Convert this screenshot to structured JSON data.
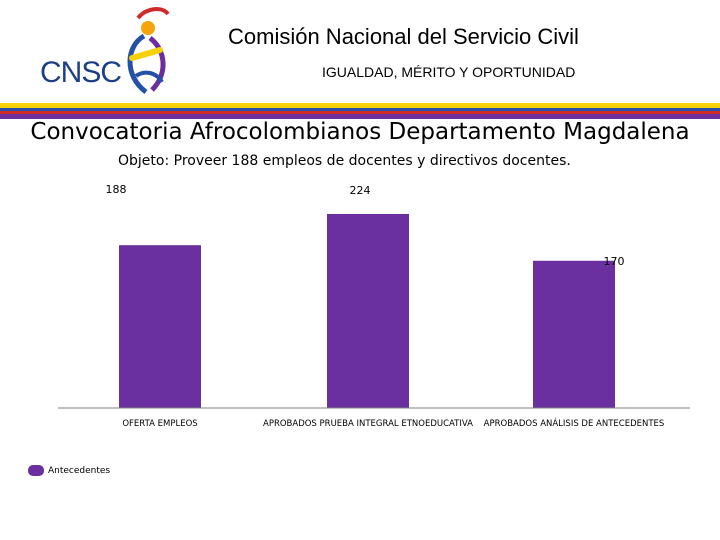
{
  "header": {
    "logo_text": "CNSC",
    "org_name": "Comisión Nacional del Servicio Civil",
    "motto": "IGUALDAD, MÉRITO Y OPORTUNIDAD"
  },
  "slide": {
    "title": "Convocatoria Afrocolombianos Departamento Magdalena",
    "subtitle": "Objeto: Proveer 188 empleos de docentes y directivos docentes."
  },
  "colors": {
    "bar": "#6b30a0",
    "axis": "#808080"
  },
  "chart_data": {
    "type": "bar",
    "categories": [
      "OFERTA EMPLEOS",
      "APROBADOS PRUEBA INTEGRAL ETNOEDUCATIVA",
      "APROBADOS ANÁLISIS DE ANTECEDENTES"
    ],
    "series": [
      {
        "name": "Antecedentes",
        "values": [
          188,
          224,
          170
        ]
      }
    ],
    "data_labels": [
      "188",
      "224",
      "170"
    ],
    "ylim": [
      0,
      250
    ],
    "grid": false,
    "legend_position": "bottom-left"
  }
}
